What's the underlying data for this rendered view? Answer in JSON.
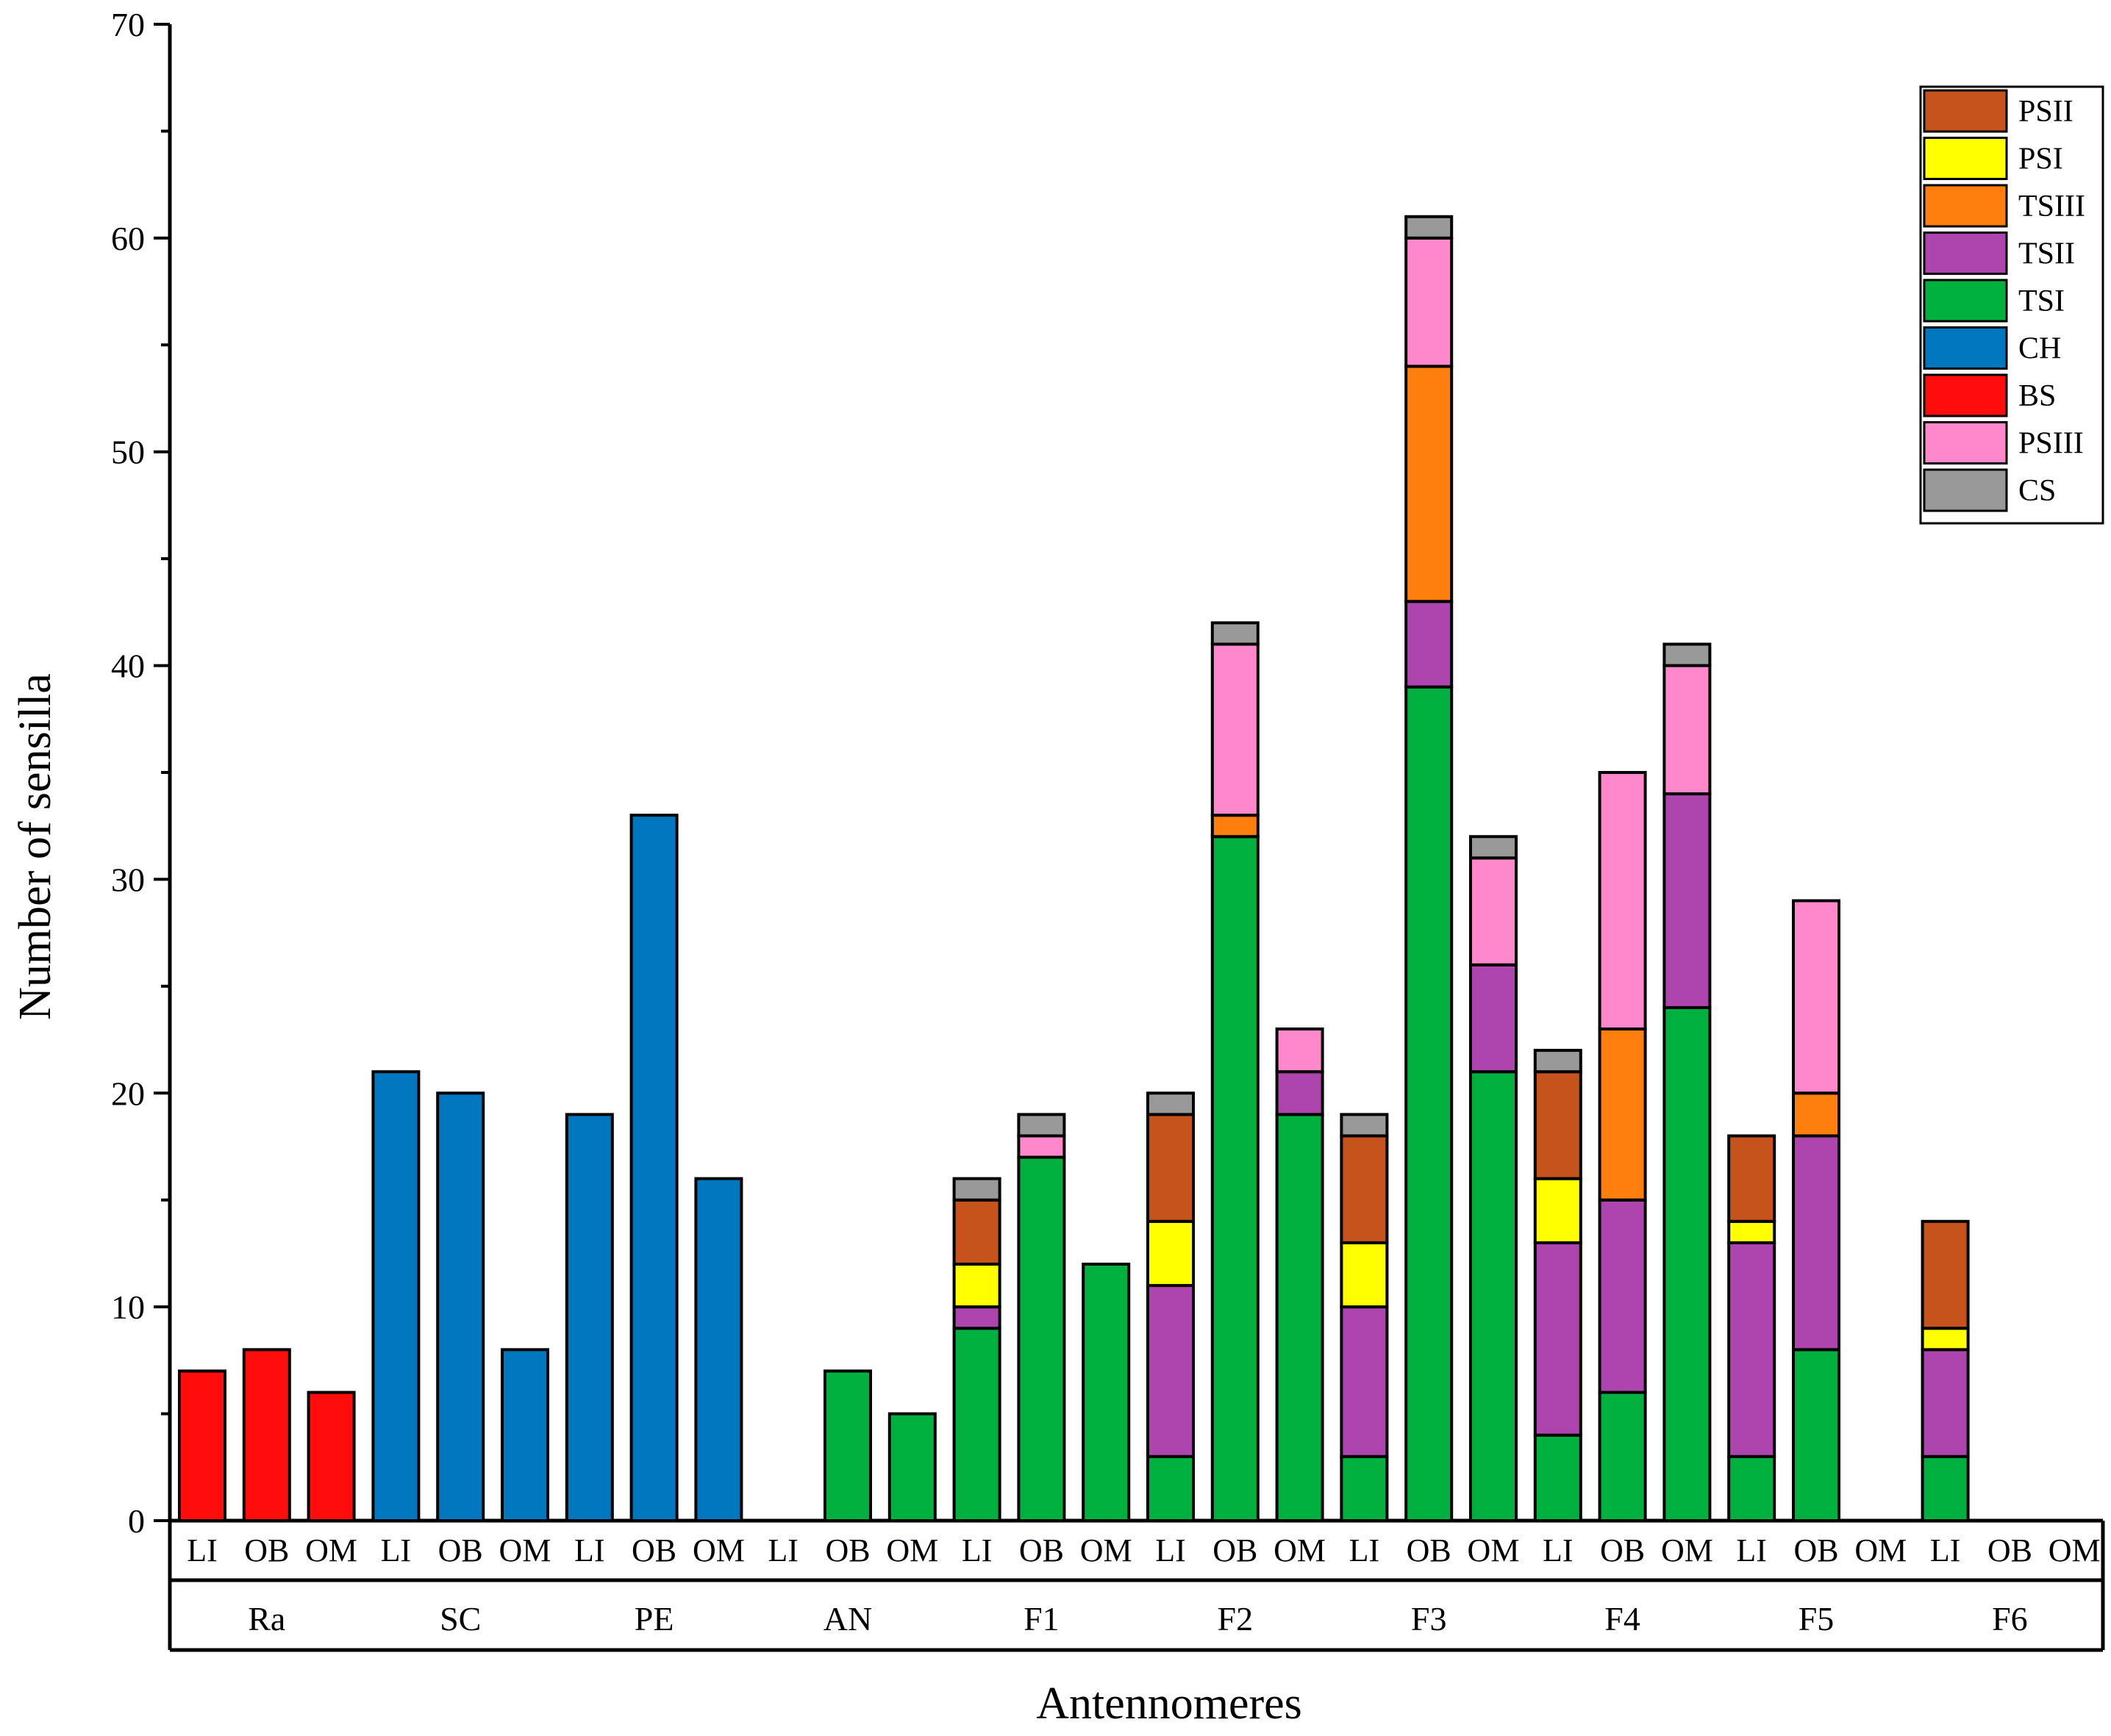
{
  "chart_data": {
    "type": "bar",
    "stacked": true,
    "xlabel": "Antennomeres",
    "ylabel": "Number of sensilla",
    "ylim": [
      0,
      70
    ],
    "yticks": [
      0,
      10,
      20,
      30,
      40,
      50,
      60,
      70
    ],
    "groups": [
      {
        "label": "Ra",
        "categories": [
          "LI",
          "OB",
          "OM"
        ]
      },
      {
        "label": "SC",
        "categories": [
          "LI",
          "OB",
          "OM"
        ]
      },
      {
        "label": "PE",
        "categories": [
          "LI",
          "OB",
          "OM"
        ]
      },
      {
        "label": "AN",
        "categories": [
          "LI",
          "OB",
          "OM"
        ]
      },
      {
        "label": "F1",
        "categories": [
          "LI",
          "OB",
          "OM"
        ]
      },
      {
        "label": "F2",
        "categories": [
          "LI",
          "OB",
          "OM"
        ]
      },
      {
        "label": "F3",
        "categories": [
          "LI",
          "OB",
          "OM"
        ]
      },
      {
        "label": "F4",
        "categories": [
          "LI",
          "OB",
          "OM"
        ]
      },
      {
        "label": "F5",
        "categories": [
          "LI",
          "OB",
          "OM"
        ]
      },
      {
        "label": "F6",
        "categories": [
          "LI",
          "OB",
          "OM"
        ]
      }
    ],
    "series_order_bottom_to_top": [
      "BS",
      "CH",
      "TSI",
      "TSII",
      "TSIII",
      "PSI",
      "PSII",
      "PSIII",
      "CS"
    ],
    "series": [
      {
        "name": "BS",
        "color": "#FF0D0D",
        "values": [
          7,
          8,
          6,
          0,
          0,
          0,
          0,
          0,
          0,
          0,
          0,
          0,
          0,
          0,
          0,
          0,
          0,
          0,
          0,
          0,
          0,
          0,
          0,
          0,
          0,
          0,
          0,
          0,
          0,
          0
        ]
      },
      {
        "name": "CH",
        "color": "#0077BE",
        "values": [
          0,
          0,
          0,
          21,
          20,
          8,
          19,
          33,
          16,
          0,
          0,
          0,
          0,
          0,
          0,
          0,
          0,
          0,
          0,
          0,
          0,
          0,
          0,
          0,
          0,
          0,
          0,
          0,
          0,
          0
        ]
      },
      {
        "name": "TSI",
        "color": "#00B140",
        "values": [
          0,
          0,
          0,
          0,
          0,
          0,
          0,
          0,
          0,
          0,
          7,
          5,
          9,
          17,
          12,
          3,
          32,
          19,
          3,
          39,
          21,
          4,
          6,
          24,
          3,
          8,
          0,
          3,
          0,
          0
        ]
      },
      {
        "name": "TSII",
        "color": "#AE45AE",
        "values": [
          0,
          0,
          0,
          0,
          0,
          0,
          0,
          0,
          0,
          0,
          0,
          0,
          1,
          0,
          0,
          8,
          0,
          2,
          7,
          4,
          5,
          9,
          9,
          10,
          10,
          10,
          0,
          5,
          0,
          0
        ]
      },
      {
        "name": "TSIII",
        "color": "#FF7F0E",
        "values": [
          0,
          0,
          0,
          0,
          0,
          0,
          0,
          0,
          0,
          0,
          0,
          0,
          0,
          0,
          0,
          0,
          1,
          0,
          0,
          11,
          0,
          0,
          8,
          0,
          0,
          2,
          0,
          0,
          0,
          0
        ]
      },
      {
        "name": "PSI",
        "color": "#FFFF00",
        "values": [
          0,
          0,
          0,
          0,
          0,
          0,
          0,
          0,
          0,
          0,
          0,
          0,
          2,
          0,
          0,
          3,
          0,
          0,
          3,
          0,
          0,
          3,
          0,
          0,
          1,
          0,
          0,
          1,
          0,
          0
        ]
      },
      {
        "name": "PSII",
        "color": "#C5531B",
        "values": [
          0,
          0,
          0,
          0,
          0,
          0,
          0,
          0,
          0,
          0,
          0,
          0,
          3,
          0,
          0,
          5,
          0,
          0,
          5,
          0,
          0,
          5,
          0,
          0,
          4,
          0,
          0,
          5,
          0,
          0
        ]
      },
      {
        "name": "PSIII",
        "color": "#FF88CC",
        "values": [
          0,
          0,
          0,
          0,
          0,
          0,
          0,
          0,
          0,
          0,
          0,
          0,
          0,
          1,
          0,
          0,
          8,
          2,
          0,
          6,
          5,
          0,
          12,
          6,
          0,
          9,
          0,
          0,
          0,
          0
        ]
      },
      {
        "name": "CS",
        "color": "#999999",
        "values": [
          0,
          0,
          0,
          0,
          0,
          0,
          0,
          0,
          0,
          0,
          0,
          0,
          1,
          1,
          0,
          1,
          1,
          0,
          1,
          1,
          1,
          1,
          0,
          1,
          0,
          0,
          0,
          0,
          0,
          0
        ]
      }
    ],
    "legend": {
      "placement": "top-right",
      "order": [
        "PSII",
        "PSI",
        "TSIII",
        "TSII",
        "TSI",
        "CH",
        "BS",
        "PSIII",
        "CS"
      ]
    },
    "grid": false
  }
}
